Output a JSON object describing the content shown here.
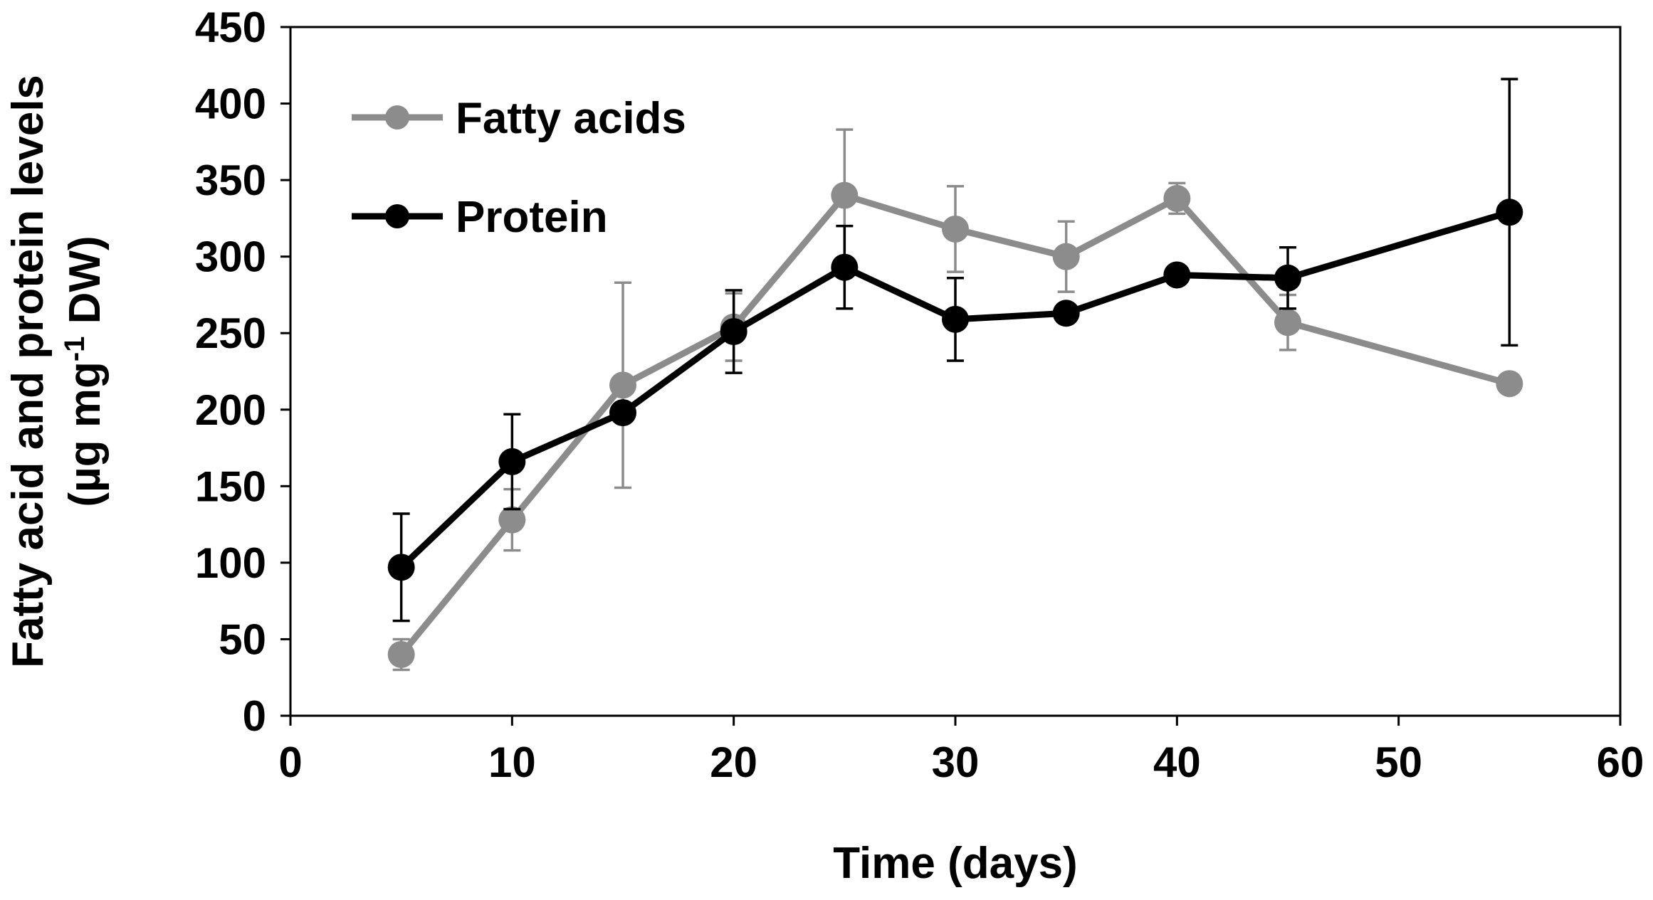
{
  "chart_data": {
    "type": "line",
    "title": "",
    "xlabel": "Time (days)",
    "ylabel_line1": "Fatty acid and protein levels",
    "ylabel_line2_prefix": "(µg mg",
    "ylabel_line2_sup": "-1",
    "ylabel_line2_suffix": " DW)",
    "xlim": [
      0,
      60
    ],
    "ylim": [
      0,
      450
    ],
    "xticks": [
      0,
      10,
      20,
      30,
      40,
      50,
      60
    ],
    "yticks": [
      0,
      50,
      100,
      150,
      200,
      250,
      300,
      350,
      400,
      450
    ],
    "grid": false,
    "legend_position": "top-left",
    "series": [
      {
        "name": "Fatty acids",
        "color": "#8c8c8c",
        "points": [
          {
            "x": 5,
            "y": 40,
            "err": 10
          },
          {
            "x": 10,
            "y": 128,
            "err": 20
          },
          {
            "x": 15,
            "y": 216,
            "err": 67
          },
          {
            "x": 20,
            "y": 254,
            "err": 22
          },
          {
            "x": 25,
            "y": 340,
            "err": 43
          },
          {
            "x": 30,
            "y": 318,
            "err": 28
          },
          {
            "x": 35,
            "y": 300,
            "err": 23
          },
          {
            "x": 40,
            "y": 338,
            "err": 10
          },
          {
            "x": 45,
            "y": 257,
            "err": 18
          },
          {
            "x": 55,
            "y": 217,
            "err": 0
          }
        ]
      },
      {
        "name": "Protein",
        "color": "#000000",
        "points": [
          {
            "x": 5,
            "y": 97,
            "err": 35
          },
          {
            "x": 10,
            "y": 166,
            "err": 31
          },
          {
            "x": 15,
            "y": 198,
            "err": 0
          },
          {
            "x": 20,
            "y": 251,
            "err": 27
          },
          {
            "x": 25,
            "y": 293,
            "err": 27
          },
          {
            "x": 30,
            "y": 259,
            "err": 27
          },
          {
            "x": 35,
            "y": 263,
            "err": 0
          },
          {
            "x": 40,
            "y": 288,
            "err": 0
          },
          {
            "x": 45,
            "y": 286,
            "err": 20
          },
          {
            "x": 55,
            "y": 329,
            "err": 87
          }
        ]
      }
    ]
  }
}
